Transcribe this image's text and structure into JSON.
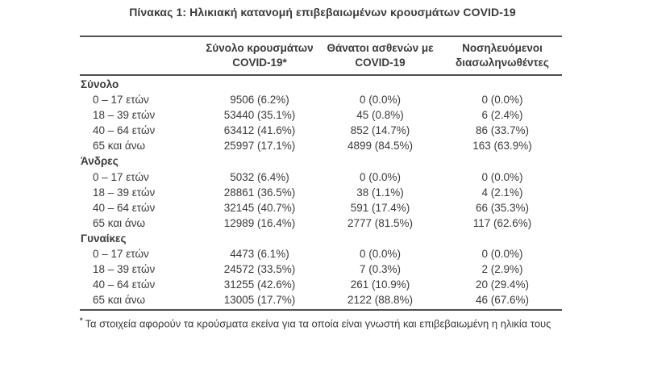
{
  "title": "Πίνακας 1: Ηλικιακή κατανομή επιβεβαιωμένων κρουσμάτων COVID-19",
  "table": {
    "columns": [
      {
        "line1": "Σύνολο κρουσμάτων",
        "line2": "COVID-19*"
      },
      {
        "line1": "Θάνατοι ασθενών με",
        "line2": "COVID-19"
      },
      {
        "line1": "Νοσηλευόμενοι",
        "line2": "διασωληνωθέντες"
      }
    ],
    "groups": [
      {
        "label": "Σύνολο",
        "rows": [
          {
            "age": "0 – 17 ετών",
            "cases": "9506 (6.2%)",
            "deaths": "0 (0.0%)",
            "intubated": "0 (0.0%)"
          },
          {
            "age": "18 – 39 ετών",
            "cases": "53440 (35.1%)",
            "deaths": "45 (0.8%)",
            "intubated": "6 (2.4%)"
          },
          {
            "age": "40 – 64 ετών",
            "cases": "63412 (41.6%)",
            "deaths": "852 (14.7%)",
            "intubated": "86 (33.7%)"
          },
          {
            "age": "65 και άνω",
            "cases": "25997 (17.1%)",
            "deaths": "4899 (84.5%)",
            "intubated": "163 (63.9%)"
          }
        ]
      },
      {
        "label": "Άνδρες",
        "rows": [
          {
            "age": "0 – 17 ετών",
            "cases": "5032 (6.4%)",
            "deaths": "0 (0.0%)",
            "intubated": "0 (0.0%)"
          },
          {
            "age": "18 – 39 ετών",
            "cases": "28861 (36.5%)",
            "deaths": "38 (1.1%)",
            "intubated": "4 (2.1%)"
          },
          {
            "age": "40 – 64 ετών",
            "cases": "32145 (40.7%)",
            "deaths": "591 (17.4%)",
            "intubated": "66 (35.3%)"
          },
          {
            "age": "65 και άνω",
            "cases": "12989 (16.4%)",
            "deaths": "2777 (81.5%)",
            "intubated": "117 (62.6%)"
          }
        ]
      },
      {
        "label": "Γυναίκες",
        "rows": [
          {
            "age": "0 – 17 ετών",
            "cases": "4473 (6.1%)",
            "deaths": "0 (0.0%)",
            "intubated": "0 (0.0%)"
          },
          {
            "age": "18 – 39 ετών",
            "cases": "24572 (33.5%)",
            "deaths": "7 (0.3%)",
            "intubated": "2 (2.9%)"
          },
          {
            "age": "40 – 64 ετών",
            "cases": "31255 (42.6%)",
            "deaths": "261 (10.9%)",
            "intubated": "20 (29.4%)"
          },
          {
            "age": "65 και άνω",
            "cases": "13005 (17.7%)",
            "deaths": "2122 (88.8%)",
            "intubated": "46 (67.6%)"
          }
        ]
      }
    ]
  },
  "footnote": {
    "marker": "*",
    "text": "Τα στοιχεία αφορούν τα κρούσματα εκείνα για τα οποία είναι γνωστή και επιβεβαιωμένη η ηλικία τους"
  },
  "colors": {
    "text": "#3b3b3b",
    "rule": "#4f4f4f",
    "background": "#ffffff"
  }
}
